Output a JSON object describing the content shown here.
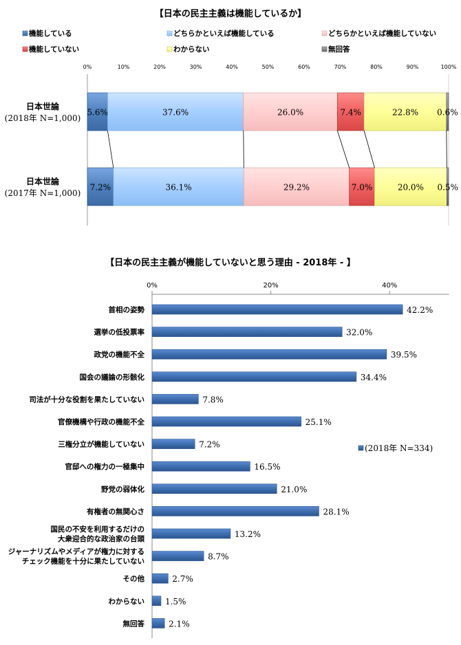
{
  "colors": {
    "functioning": "#4f81bd",
    "somewhat_functioning": "#a6cfff",
    "somewhat_not": "#ffcfcf",
    "not_functioning": "#f06060",
    "dont_know": "#ffff99",
    "no_answer": "#8c8c8c",
    "bar2": "#3f6fb0"
  },
  "chart_data": [
    {
      "type": "bar",
      "orientation": "horizontal-stacked-100",
      "title": "【日本の民主主義は機能しているか】",
      "ticks": [
        "0%",
        "10%",
        "20%",
        "30%",
        "40%",
        "50%",
        "60%",
        "70%",
        "80%",
        "90%",
        "100%"
      ],
      "xlim": [
        0,
        100
      ],
      "legend": [
        "機能している",
        "どちらかといえば機能している",
        "どちらかといえば機能していない",
        "機能していない",
        "わからない",
        "無回答"
      ],
      "rows": [
        {
          "label": "日本世論",
          "sublabel": "(2018年 N=1,000)",
          "values": [
            5.6,
            37.6,
            26.0,
            7.4,
            22.8,
            0.6
          ],
          "labels": [
            "5.6%",
            "37.6%",
            "26.0%",
            "7.4%",
            "22.8%",
            "0.6%"
          ]
        },
        {
          "label": "日本世論",
          "sublabel": "(2017年 N=1,000)",
          "values": [
            7.2,
            36.1,
            29.2,
            7.0,
            20.0,
            0.5
          ],
          "labels": [
            "7.2%",
            "36.1%",
            "29.2%",
            "7.0%",
            "20.0%",
            "0.5%"
          ]
        }
      ]
    },
    {
      "type": "bar",
      "orientation": "horizontal",
      "title": "【日本の民主主義が機能していないと思う理由 - 2018年 - 】",
      "ticks": [
        "0%",
        "20%",
        "40%"
      ],
      "xlim": [
        0,
        50
      ],
      "legend": "(2018年 N=334)",
      "categories": [
        [
          "首相の姿勢"
        ],
        [
          "選挙の低投票率"
        ],
        [
          "政党の機能不全"
        ],
        [
          "国会の議論の形骸化"
        ],
        [
          "司法が十分な役割を果たしていない"
        ],
        [
          "官僚機構や行政の機能不全"
        ],
        [
          "三権分立が機能していない"
        ],
        [
          "官邸への権力の一極集中"
        ],
        [
          "野党の弱体化"
        ],
        [
          "有権者の無関心さ"
        ],
        [
          "国民の不安を利用するだけの",
          "大衆迎合的な政治家の台頭"
        ],
        [
          "ジャーナリズムやメディアが権力に対する",
          "チェック機能を十分に果たしていない"
        ],
        [
          "その他"
        ],
        [
          "わからない"
        ],
        [
          "無回答"
        ]
      ],
      "values": [
        42.2,
        32.0,
        39.5,
        34.4,
        7.8,
        25.1,
        7.2,
        16.5,
        21.0,
        28.1,
        13.2,
        8.7,
        2.7,
        1.5,
        2.1
      ],
      "value_labels": [
        "42.2%",
        "32.0%",
        "39.5%",
        "34.4%",
        "7.8%",
        "25.1%",
        "7.2%",
        "16.5%",
        "21.0%",
        "28.1%",
        "13.2%",
        "8.7%",
        "2.7%",
        "1.5%",
        "2.1%"
      ]
    }
  ]
}
